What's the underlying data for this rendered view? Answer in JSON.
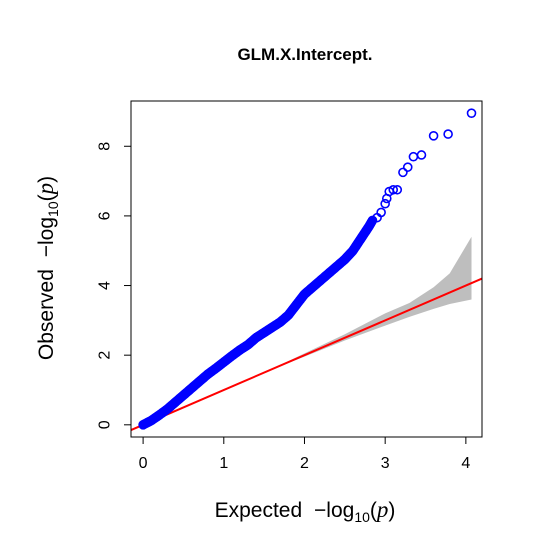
{
  "chart_data": {
    "type": "scatter",
    "title": "GLM.X.Intercept.",
    "xlabel": {
      "prefix": "Expected",
      "minus": "−",
      "log": "log",
      "sub": "10",
      "open": "(",
      "var": "p",
      "close": ")"
    },
    "ylabel": {
      "prefix": "Observed",
      "minus": "−",
      "log": "log",
      "sub": "10",
      "open": "(",
      "var": "p",
      "close": ")"
    },
    "xlim": [
      -0.15,
      4.2
    ],
    "ylim": [
      -0.35,
      9.3
    ],
    "x_ticks": [
      "0",
      "1",
      "2",
      "3",
      "4"
    ],
    "y_ticks": [
      "0",
      "2",
      "4",
      "6",
      "8"
    ],
    "grid": false,
    "colors": {
      "points": "#0000ff",
      "line": "#ff0000",
      "band": "#bebebe"
    },
    "reference_line": {
      "slope": 1,
      "intercept": 0
    },
    "confidence_band": {
      "x": [
        0,
        0.5,
        1.0,
        1.5,
        2.0,
        2.5,
        3.0,
        3.3,
        3.6,
        3.8,
        4.07
      ],
      "lower": [
        0,
        0.5,
        1.0,
        1.5,
        1.96,
        2.42,
        2.85,
        3.1,
        3.33,
        3.47,
        3.6
      ],
      "upper": [
        0,
        0.5,
        1.0,
        1.5,
        2.05,
        2.6,
        3.2,
        3.5,
        3.95,
        4.35,
        5.4
      ]
    },
    "observed_curve": [
      [
        0,
        0
      ],
      [
        0.1,
        0.12
      ],
      [
        0.2,
        0.28
      ],
      [
        0.3,
        0.45
      ],
      [
        0.4,
        0.65
      ],
      [
        0.5,
        0.85
      ],
      [
        0.6,
        1.05
      ],
      [
        0.7,
        1.25
      ],
      [
        0.8,
        1.45
      ],
      [
        0.9,
        1.62
      ],
      [
        1.0,
        1.8
      ],
      [
        1.1,
        1.98
      ],
      [
        1.2,
        2.15
      ],
      [
        1.3,
        2.3
      ],
      [
        1.4,
        2.5
      ],
      [
        1.5,
        2.65
      ],
      [
        1.6,
        2.8
      ],
      [
        1.7,
        2.95
      ],
      [
        1.8,
        3.15
      ],
      [
        1.9,
        3.45
      ],
      [
        2.0,
        3.75
      ],
      [
        2.1,
        3.95
      ],
      [
        2.2,
        4.15
      ],
      [
        2.3,
        4.35
      ],
      [
        2.4,
        4.55
      ],
      [
        2.5,
        4.75
      ],
      [
        2.6,
        5.0
      ],
      [
        2.7,
        5.35
      ],
      [
        2.8,
        5.7
      ],
      [
        2.85,
        5.9
      ]
    ],
    "tail_points": [
      [
        2.9,
        5.95
      ],
      [
        2.95,
        6.1
      ],
      [
        3.0,
        6.35
      ],
      [
        3.02,
        6.5
      ],
      [
        3.05,
        6.7
      ],
      [
        3.1,
        6.75
      ],
      [
        3.15,
        6.75
      ],
      [
        3.22,
        7.25
      ],
      [
        3.28,
        7.4
      ],
      [
        3.35,
        7.7
      ],
      [
        3.45,
        7.75
      ],
      [
        3.6,
        8.3
      ],
      [
        3.78,
        8.35
      ],
      [
        4.07,
        8.95
      ]
    ]
  }
}
